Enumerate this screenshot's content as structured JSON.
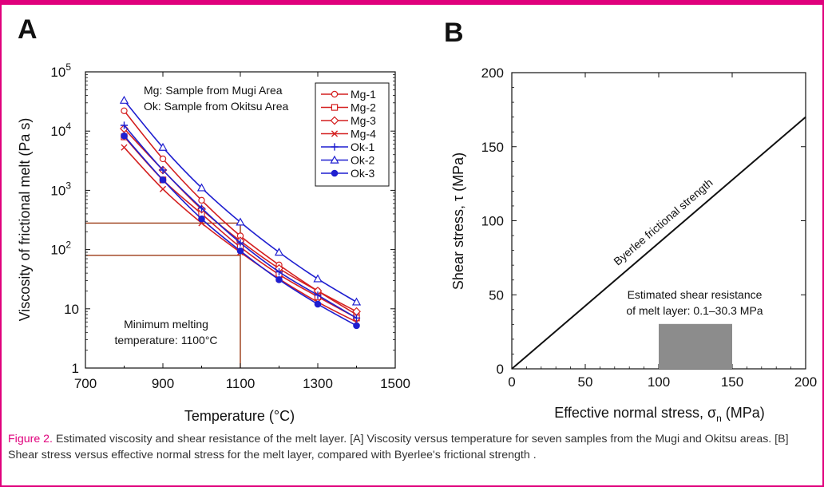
{
  "caption": {
    "lead": "Figure 2.",
    "text": " Estimated viscosity and shear resistance of the melt layer. [A] Viscosity versus temperature for seven samples from the Mugi and Okitsu areas. [B] Shear stress versus effective normal stress for the melt layer, compared with Byerlee's frictional strength ."
  },
  "colors": {
    "mugi": "#d42020",
    "okitsu": "#1f1fd0",
    "guide": "#9b3a14",
    "frame": "#e0007c"
  },
  "chart_data": [
    {
      "panel": "A",
      "type": "line",
      "xlabel": "Temperature (°C)",
      "ylabel": "Viscosity of frictional melt (Pa s)",
      "xlim": [
        700,
        1500
      ],
      "ylim": [
        1,
        100000
      ],
      "yscale": "log",
      "x_ticks": [
        "700",
        "900",
        "1100",
        "1300",
        "1500"
      ],
      "y_ticks": [
        {
          "v": 1,
          "base": "1",
          "exp": ""
        },
        {
          "v": 10,
          "base": "10",
          "exp": ""
        },
        {
          "v": 100,
          "base": "10",
          "exp": "2"
        },
        {
          "v": 1000,
          "base": "10",
          "exp": "3"
        },
        {
          "v": 10000,
          "base": "10",
          "exp": "4"
        },
        {
          "v": 100000,
          "base": "10",
          "exp": "5"
        }
      ],
      "annotations": {
        "mg_note": "Mg: Sample from Mugi Area",
        "ok_note": "Ok: Sample from Okitsu Area",
        "min_line1": "Minimum melting",
        "min_line2": "temperature: 1100°C"
      },
      "guide_lines": {
        "x": 1100,
        "y_levels": [
          280,
          80
        ]
      },
      "legend_position": "top-right",
      "x": [
        800,
        900,
        1000,
        1100,
        1200,
        1300,
        1400
      ],
      "series": [
        {
          "name": "Mg-1",
          "marker": "circle-open",
          "color": "#d42020",
          "values": [
            22000,
            3400,
            680,
            170,
            55,
            20,
            8
          ]
        },
        {
          "name": "Mg-2",
          "marker": "square-open",
          "color": "#d42020",
          "values": [
            8000,
            1500,
            400,
            110,
            38,
            16,
            7
          ]
        },
        {
          "name": "Mg-3",
          "marker": "diamond-open",
          "color": "#d42020",
          "values": [
            11000,
            2200,
            480,
            140,
            48,
            20,
            9
          ]
        },
        {
          "name": "Mg-4",
          "marker": "x",
          "color": "#d42020",
          "values": [
            5300,
            1050,
            280,
            90,
            32,
            13,
            6
          ]
        },
        {
          "name": "Ok-1",
          "marker": "plus",
          "color": "#1f1fd0",
          "values": [
            12500,
            2200,
            500,
            130,
            42,
            17,
            7
          ]
        },
        {
          "name": "Ok-2",
          "marker": "triangle-open",
          "color": "#1f1fd0",
          "values": [
            33000,
            5300,
            1100,
            290,
            90,
            32,
            13
          ]
        },
        {
          "name": "Ok-3",
          "marker": "circle-filled",
          "color": "#1f1fd0",
          "values": [
            8300,
            1500,
            330,
            95,
            31,
            12,
            5.2
          ]
        }
      ]
    },
    {
      "panel": "B",
      "type": "line",
      "xlabel_main": "Effective normal stress, σ",
      "xlabel_sub": "n",
      "xlabel_unit": " (MPa)",
      "ylabel": "Shear stress, τ (MPa)",
      "xlim": [
        0,
        200
      ],
      "ylim": [
        0,
        200
      ],
      "x_ticks": [
        "0",
        "50",
        "100",
        "150",
        "200"
      ],
      "y_ticks": [
        "0",
        "50",
        "100",
        "150",
        "200"
      ],
      "byerlee": {
        "label": "Byerlee frictional strength",
        "x": [
          0,
          200
        ],
        "y": [
          0,
          170
        ]
      },
      "melt_box": {
        "x_range": [
          100,
          150
        ],
        "y_range": [
          0,
          30.3
        ],
        "label_line1": "Estimated shear resistance",
        "label_line2": "of melt layer: 0.1–30.3 MPa"
      }
    }
  ]
}
